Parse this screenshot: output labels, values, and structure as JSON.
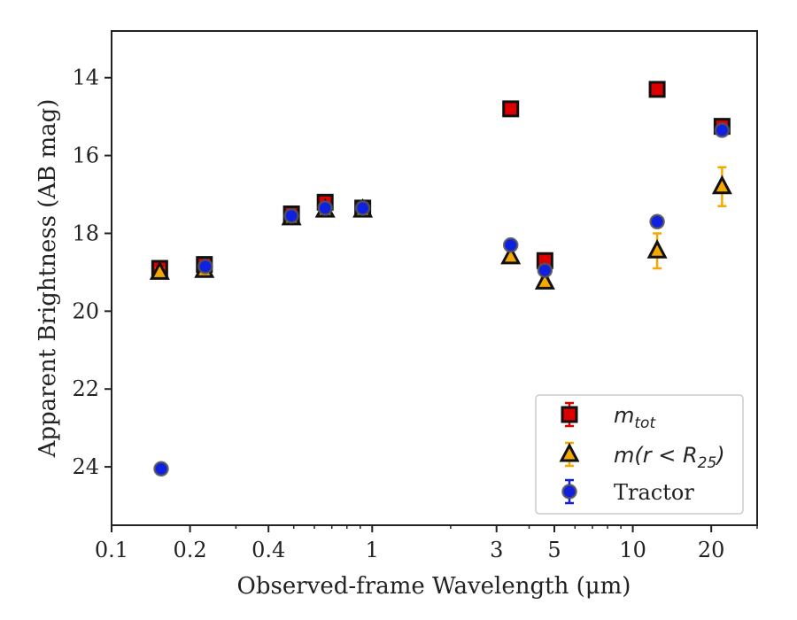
{
  "chart_data": {
    "type": "scatter",
    "title": "",
    "xlabel": "Observed-frame Wavelength (μm)",
    "ylabel": "Apparent Brightness (AB mag)",
    "xscale": "log",
    "xlim": [
      0.1,
      30
    ],
    "ylim": [
      25.5,
      12.8
    ],
    "y_inverted": true,
    "xticks": [
      {
        "value": 0.1,
        "label": "0.1"
      },
      {
        "value": 0.2,
        "label": "0.2"
      },
      {
        "value": 0.4,
        "label": "0.4"
      },
      {
        "value": 1,
        "label": "1"
      },
      {
        "value": 3,
        "label": "3"
      },
      {
        "value": 5,
        "label": "5"
      },
      {
        "value": 10,
        "label": "10"
      },
      {
        "value": 20,
        "label": "20"
      }
    ],
    "yticks": [
      {
        "value": 14,
        "label": "14"
      },
      {
        "value": 16,
        "label": "16"
      },
      {
        "value": 18,
        "label": "18"
      },
      {
        "value": 20,
        "label": "20"
      },
      {
        "value": 22,
        "label": "22"
      },
      {
        "value": 24,
        "label": "24"
      }
    ],
    "grid": false,
    "legend_position": "lower-right",
    "series": [
      {
        "name": "m_tot",
        "legend_main": "m",
        "legend_sub": "tot",
        "marker": "square",
        "color": "#dd0000",
        "edge_color": "#111111",
        "error_color": "#dd0000",
        "points": [
          {
            "x": 0.153,
            "y": 18.9,
            "err": 0.15
          },
          {
            "x": 0.227,
            "y": 18.8,
            "err": 0.1
          },
          {
            "x": 0.49,
            "y": 17.5,
            "err": 0.05
          },
          {
            "x": 0.66,
            "y": 17.2,
            "err": 0.05
          },
          {
            "x": 0.92,
            "y": 17.35,
            "err": 0.05
          },
          {
            "x": 3.4,
            "y": 14.8,
            "err": 0.05
          },
          {
            "x": 4.6,
            "y": 18.7,
            "err": 0.05
          },
          {
            "x": 12.4,
            "y": 14.3,
            "err": 0.05
          },
          {
            "x": 22.0,
            "y": 15.25,
            "err": 0.1
          }
        ]
      },
      {
        "name": "m(r < R25)",
        "legend_main": "m(r < R",
        "legend_sub": "25",
        "legend_tail": ")",
        "marker": "triangle",
        "color": "#f5a800",
        "edge_color": "#111111",
        "error_color": "#f5a800",
        "points": [
          {
            "x": 0.153,
            "y": 19.0,
            "err": 0.1
          },
          {
            "x": 0.227,
            "y": 18.95,
            "err": 0.1
          },
          {
            "x": 0.49,
            "y": 17.6,
            "err": 0.05
          },
          {
            "x": 0.66,
            "y": 17.4,
            "err": 0.05
          },
          {
            "x": 0.92,
            "y": 17.4,
            "err": 0.05
          },
          {
            "x": 3.4,
            "y": 18.6,
            "err": 0.05
          },
          {
            "x": 4.6,
            "y": 19.25,
            "err": 0.1
          },
          {
            "x": 12.4,
            "y": 18.45,
            "err": 0.45
          },
          {
            "x": 22.0,
            "y": 16.8,
            "err": 0.5
          }
        ]
      },
      {
        "name": "Tractor",
        "marker": "circle",
        "color": "#1020e0",
        "edge_color": "#555555",
        "error_color": "#1020e0",
        "points": [
          {
            "x": 0.155,
            "y": 24.05,
            "err": 0.05
          },
          {
            "x": 0.229,
            "y": 18.85,
            "err": 0.05
          },
          {
            "x": 0.49,
            "y": 17.55,
            "err": 0.05
          },
          {
            "x": 0.66,
            "y": 17.35,
            "err": 0.05
          },
          {
            "x": 0.92,
            "y": 17.35,
            "err": 0.05
          },
          {
            "x": 3.4,
            "y": 18.3,
            "err": 0.05
          },
          {
            "x": 4.6,
            "y": 18.95,
            "err": 0.05
          },
          {
            "x": 12.4,
            "y": 17.7,
            "err": 0.05
          },
          {
            "x": 22.0,
            "y": 15.35,
            "err": 0.05
          }
        ]
      }
    ]
  }
}
